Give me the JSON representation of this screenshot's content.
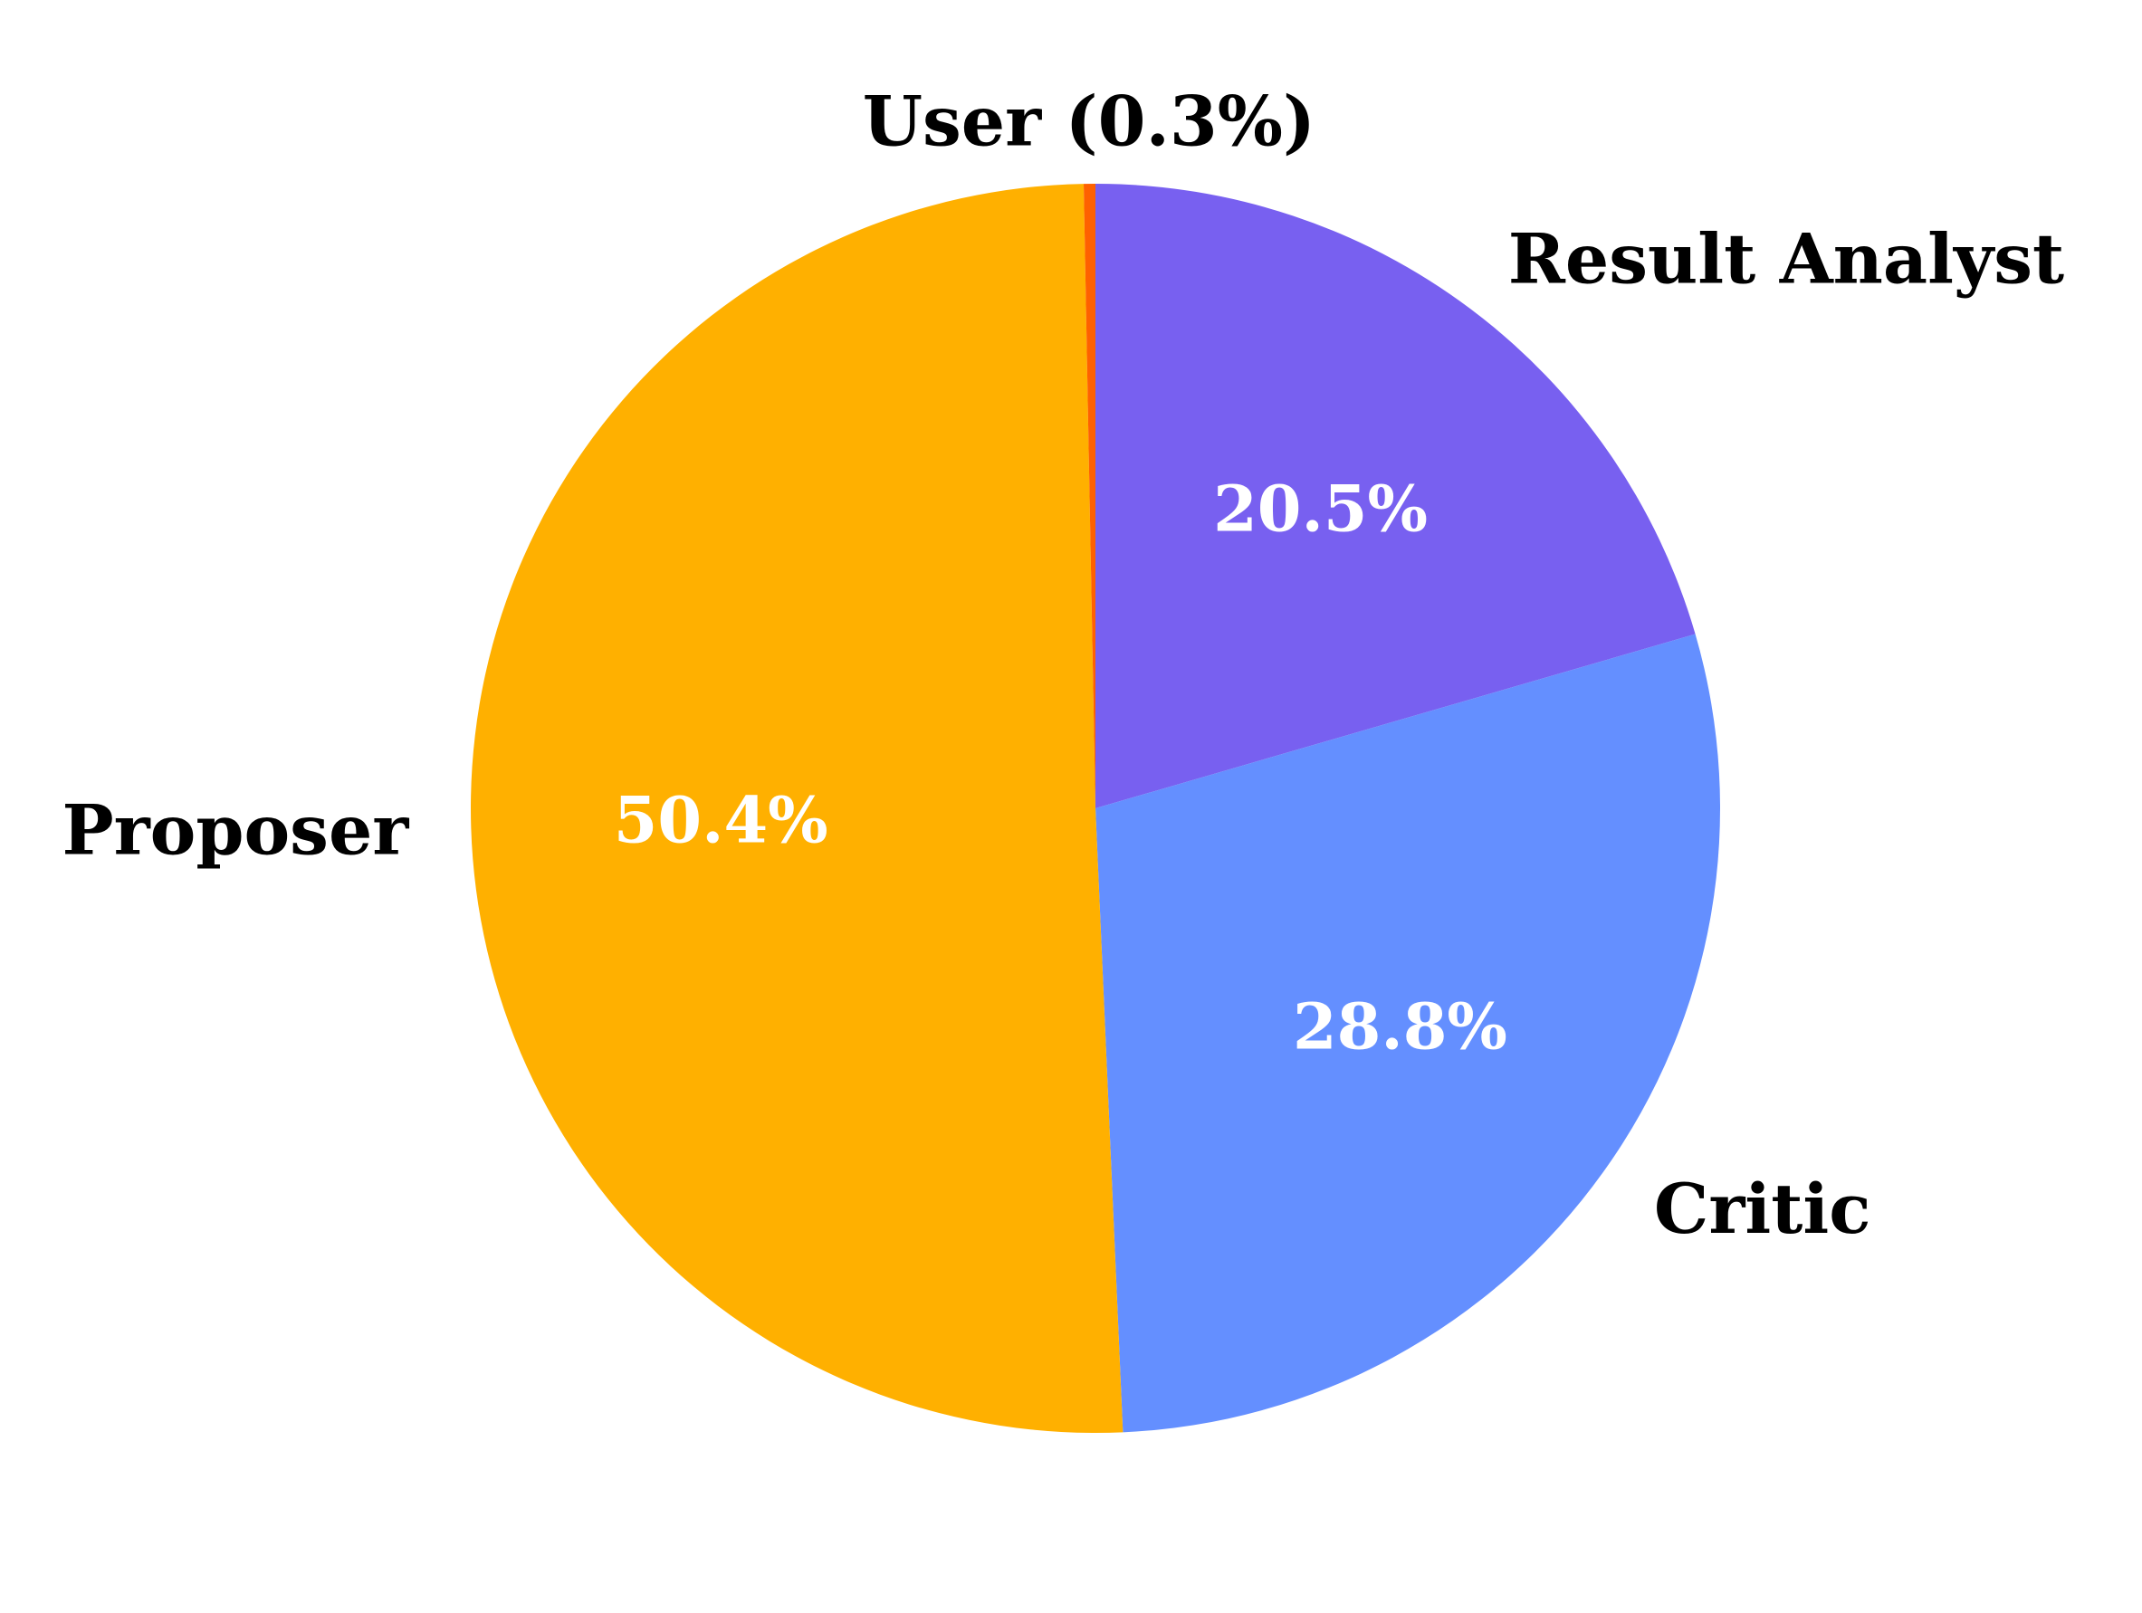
{
  "chart_data": {
    "type": "pie",
    "title": "",
    "start_angle_deg": 90,
    "direction": "clockwise",
    "slices": [
      {
        "label": "Result Analyst",
        "value": 20.5,
        "pct_label": "20.5%",
        "color": "#7860F0",
        "show_inner_pct": true
      },
      {
        "label": "Critic",
        "value": 28.8,
        "pct_label": "28.8%",
        "color": "#648FFF",
        "show_inner_pct": true
      },
      {
        "label": "Proposer",
        "value": 50.4,
        "pct_label": "50.4%",
        "color": "#FFB000",
        "show_inner_pct": true
      },
      {
        "label": "User (0.3%)",
        "value": 0.3,
        "pct_label": "",
        "color": "#FE6100",
        "show_inner_pct": false
      }
    ]
  }
}
